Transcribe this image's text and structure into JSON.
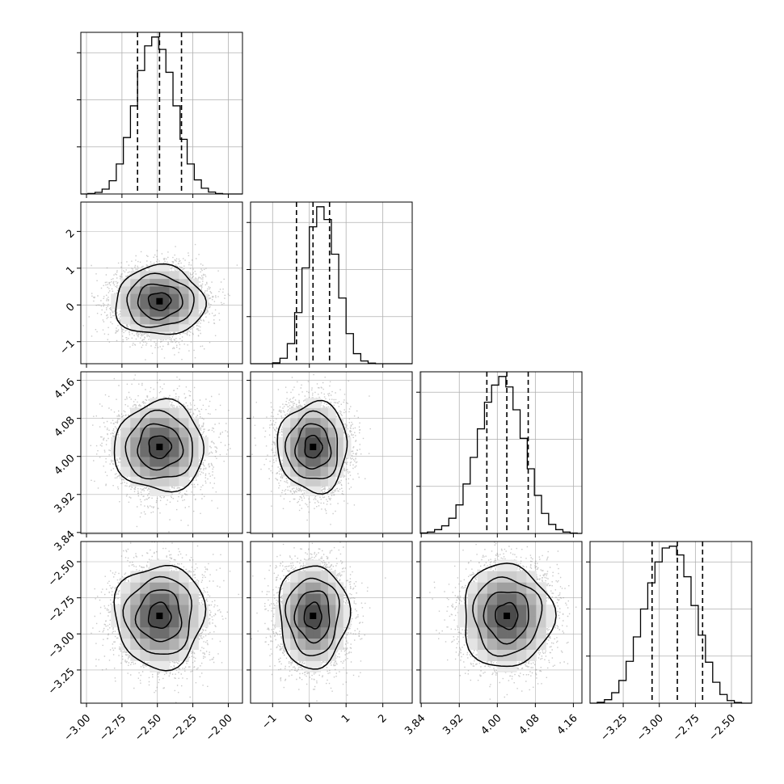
{
  "figure": {
    "type": "corner"
  },
  "style": {
    "hist_color": "#000000",
    "contour_color": "#000000",
    "scatter_color": "#888888",
    "density_colormap": "greys",
    "grid_color": "#b0b0b0",
    "background": "#ffffff"
  },
  "parameters": [
    {
      "index": 0,
      "range": [
        -3.04,
        -1.9
      ],
      "ticks": [
        -3.0,
        -2.75,
        -2.5,
        -2.25,
        -2.0
      ],
      "tick_labels": [
        "−3.00",
        "−2.75",
        "−2.50",
        "−2.25",
        "−2.00"
      ],
      "quantiles": [
        -2.64,
        -2.485,
        -2.33
      ],
      "mean": -2.485,
      "sd": 0.15
    },
    {
      "index": 1,
      "range": [
        -1.6,
        2.8
      ],
      "ticks": [
        -1,
        0,
        1,
        2
      ],
      "tick_labels": [
        "−1",
        "0",
        "1",
        "2"
      ],
      "quantiles": [
        -0.35,
        0.1,
        0.55
      ],
      "mean": 0.1,
      "sd": 0.45
    },
    {
      "index": 2,
      "range": [
        3.838,
        4.178
      ],
      "ticks": [
        3.84,
        3.92,
        4.0,
        4.08,
        4.16
      ],
      "tick_labels": [
        "3.84",
        "3.92",
        "4.00",
        "4.08",
        "4.16"
      ],
      "quantiles": [
        3.978,
        4.02,
        4.065
      ],
      "mean": 4.02,
      "sd": 0.045
    },
    {
      "index": 3,
      "range": [
        -3.48,
        -2.36
      ],
      "ticks": [
        -3.25,
        -3.0,
        -2.75,
        -2.5
      ],
      "tick_labels": [
        "−3.25",
        "−3.00",
        "−2.75",
        "−2.50"
      ],
      "quantiles": [
        -3.05,
        -2.875,
        -2.7
      ],
      "mean": -2.875,
      "sd": 0.17
    }
  ],
  "chart_data": {
    "type": "corner",
    "grid": true,
    "histograms": [
      {
        "param": 0,
        "bin_edges": [
          -3.04,
          -2.99,
          -2.94,
          -2.89,
          -2.84,
          -2.79,
          -2.74,
          -2.69,
          -2.64,
          -2.59,
          -2.54,
          -2.49,
          -2.44,
          -2.39,
          -2.34,
          -2.29,
          -2.24,
          -2.19,
          -2.14,
          -2.09,
          -2.04,
          -1.99,
          -1.94,
          -1.9
        ],
        "counts": [
          0,
          5,
          18,
          55,
          150,
          340,
          640,
          1000,
          1400,
          1680,
          1780,
          1640,
          1380,
          1000,
          620,
          340,
          160,
          65,
          22,
          6,
          0,
          0,
          0
        ]
      },
      {
        "param": 1,
        "bin_edges": [
          -1.6,
          -1.4,
          -1.2,
          -1.0,
          -0.8,
          -0.6,
          -0.4,
          -0.2,
          0.0,
          0.2,
          0.4,
          0.6,
          0.8,
          1.0,
          1.2,
          1.4,
          1.6,
          1.8,
          2.0,
          2.2,
          2.4,
          2.6,
          2.8
        ],
        "counts": [
          0,
          0,
          0,
          10,
          60,
          220,
          560,
          1050,
          1500,
          1720,
          1580,
          1200,
          720,
          330,
          110,
          30,
          6,
          0,
          0,
          0,
          0,
          0
        ]
      },
      {
        "param": 2,
        "bin_edges": [
          3.838,
          3.853,
          3.868,
          3.883,
          3.898,
          3.913,
          3.928,
          3.943,
          3.958,
          3.973,
          3.988,
          4.003,
          4.018,
          4.033,
          4.048,
          4.063,
          4.078,
          4.093,
          4.108,
          4.123,
          4.138,
          4.153,
          4.168,
          4.178
        ],
        "counts": [
          5,
          15,
          40,
          80,
          160,
          300,
          520,
          800,
          1100,
          1380,
          1560,
          1650,
          1540,
          1300,
          1000,
          680,
          400,
          210,
          95,
          40,
          15,
          4,
          0
        ]
      },
      {
        "param": 3,
        "bin_edges": [
          -3.48,
          -3.43,
          -3.38,
          -3.33,
          -3.28,
          -3.23,
          -3.18,
          -3.13,
          -3.08,
          -3.03,
          -2.98,
          -2.93,
          -2.88,
          -2.83,
          -2.78,
          -2.73,
          -2.68,
          -2.63,
          -2.58,
          -2.53,
          -2.48,
          -2.43,
          -2.38,
          -2.36
        ],
        "counts": [
          0,
          10,
          40,
          120,
          260,
          480,
          760,
          1080,
          1380,
          1620,
          1780,
          1800,
          1700,
          1450,
          1120,
          780,
          470,
          240,
          100,
          30,
          8,
          0,
          0
        ]
      }
    ],
    "pairs": [
      {
        "x_param": 0,
        "y_param": 1,
        "rho": 0.0
      },
      {
        "x_param": 0,
        "y_param": 2,
        "rho": 0.0
      },
      {
        "x_param": 1,
        "y_param": 2,
        "rho": 0.0
      },
      {
        "x_param": 0,
        "y_param": 3,
        "rho": 0.0
      },
      {
        "x_param": 1,
        "y_param": 3,
        "rho": 0.0
      },
      {
        "x_param": 2,
        "y_param": 3,
        "rho": 0.0
      }
    ],
    "contour_levels_sigma": [
      0.5,
      1.0,
      1.5,
      2.0
    ]
  }
}
